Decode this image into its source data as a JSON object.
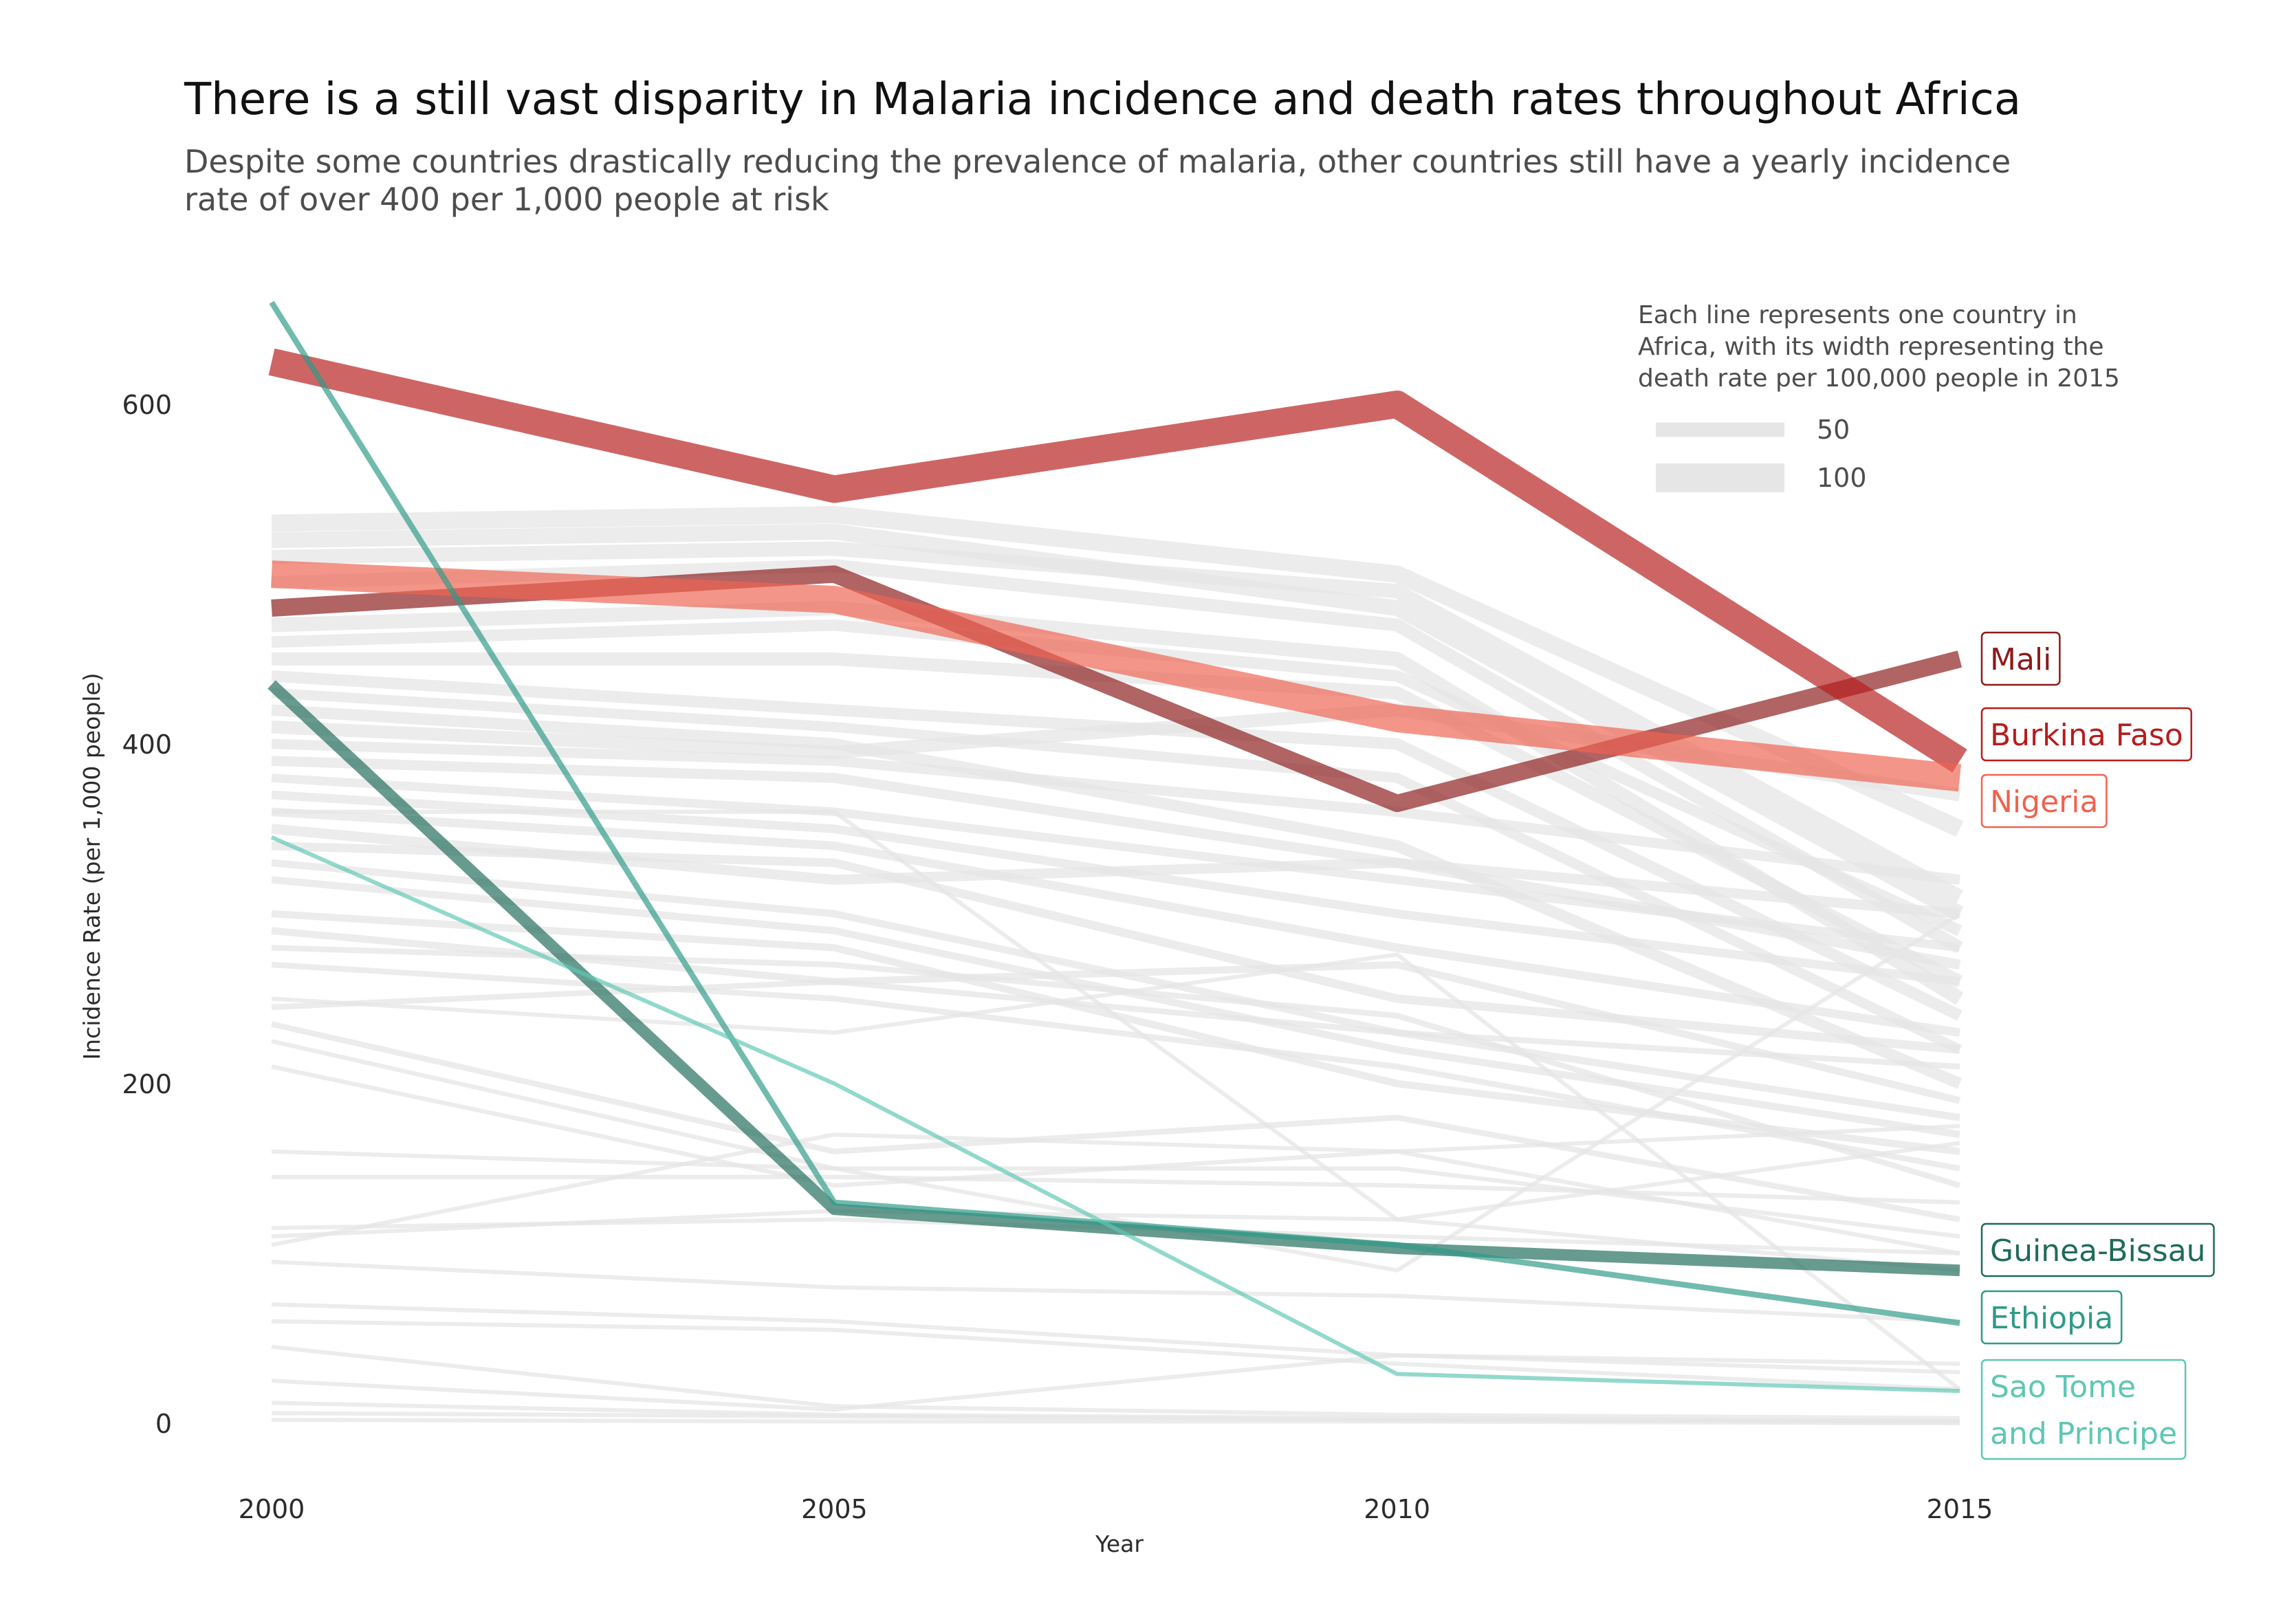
{
  "title": "There is a still vast disparity in Malaria incidence and death rates throughout Africa",
  "subtitle": "Despite some countries drastically reducing the prevalence of malaria, other countries still have a yearly incidence rate of over 400 per 1,000 people at risk",
  "colors": {
    "background_line": "#e6e6e6",
    "Mali": "#8b1a1a",
    "Burkina Faso": "#b71c1c",
    "Nigeria": "#ef6351",
    "Guinea-Bissau": "#1f6b5a",
    "Ethiopia": "#2e9a88",
    "Sao Tome and Principe": "#5ec7b4",
    "axis_text": "#2b2b2b"
  },
  "chart_data": {
    "type": "line",
    "title": "There is a still vast disparity in Malaria incidence and death rates throughout Africa",
    "subtitle": "Despite some countries drastically reducing the prevalence of malaria, other countries still have a yearly incidence rate of over 400 per 1,000 people at risk",
    "xlabel": "Year",
    "ylabel": "Incidence Rate (per 1,000 people)",
    "x": [
      2000,
      2005,
      2010,
      2015
    ],
    "x_ticks": [
      "2000",
      "2005",
      "2010",
      "2015"
    ],
    "y_ticks": [
      "0",
      "200",
      "400",
      "600"
    ],
    "xlim": [
      2000,
      2016.5
    ],
    "ylim": [
      0,
      660
    ],
    "grid": false,
    "legend": {
      "title": "Each line represents one country in Africa, with its width representing the death rate per 100,000 people in 2015",
      "title_lines": [
        "Each line represents one country in",
        "Africa, with its width representing the",
        "death rate per 100,000 people in 2015"
      ],
      "entries": [
        {
          "label": "50",
          "width": 50
        },
        {
          "label": "100",
          "width": 100
        }
      ],
      "placement": "top-right"
    },
    "highlight_series": [
      {
        "name": "Mali",
        "values": [
          480,
          500,
          365,
          450
        ],
        "death_rate": 60,
        "label_lines": [
          "Mali"
        ]
      },
      {
        "name": "Burkina Faso",
        "values": [
          625,
          550,
          600,
          390
        ],
        "death_rate": 95,
        "label_lines": [
          "Burkina Faso"
        ]
      },
      {
        "name": "Nigeria",
        "values": [
          500,
          485,
          415,
          380
        ],
        "death_rate": 95,
        "label_lines": [
          "Nigeria"
        ]
      },
      {
        "name": "Guinea-Bissau",
        "values": [
          435,
          126,
          103,
          90
        ],
        "death_rate": 40,
        "label_lines": [
          "Guinea-Bissau"
        ]
      },
      {
        "name": "Ethiopia",
        "values": [
          660,
          130,
          105,
          59
        ],
        "death_rate": 20,
        "label_lines": [
          "Ethiopia"
        ]
      },
      {
        "name": "Sao Tome and Principe",
        "values": [
          345,
          200,
          29,
          19
        ],
        "death_rate": 12,
        "label_lines": [
          "Sao Tome",
          "and Principe"
        ]
      }
    ],
    "background_series": [
      {
        "values": [
          530,
          535,
          500,
          350
        ],
        "death_rate": 60
      },
      {
        "values": [
          520,
          525,
          480,
          300
        ],
        "death_rate": 55
      },
      {
        "values": [
          510,
          515,
          490,
          310
        ],
        "death_rate": 50
      },
      {
        "values": [
          495,
          505,
          470,
          280
        ],
        "death_rate": 45
      },
      {
        "values": [
          470,
          480,
          450,
          250
        ],
        "death_rate": 50
      },
      {
        "values": [
          460,
          470,
          440,
          290
        ],
        "death_rate": 40
      },
      {
        "values": [
          450,
          450,
          430,
          260
        ],
        "death_rate": 45
      },
      {
        "values": [
          440,
          420,
          400,
          240
        ],
        "death_rate": 40
      },
      {
        "values": [
          430,
          410,
          380,
          220
        ],
        "death_rate": 35
      },
      {
        "values": [
          420,
          400,
          340,
          200
        ],
        "death_rate": 40
      },
      {
        "values": [
          410,
          395,
          420,
          370
        ],
        "death_rate": 45
      },
      {
        "values": [
          400,
          390,
          360,
          320
        ],
        "death_rate": 35
      },
      {
        "values": [
          390,
          380,
          330,
          300
        ],
        "death_rate": 35
      },
      {
        "values": [
          380,
          360,
          320,
          280
        ],
        "death_rate": 30
      },
      {
        "values": [
          370,
          350,
          300,
          260
        ],
        "death_rate": 30
      },
      {
        "values": [
          360,
          340,
          280,
          230
        ],
        "death_rate": 30
      },
      {
        "values": [
          350,
          320,
          330,
          270
        ],
        "death_rate": 35
      },
      {
        "values": [
          340,
          330,
          250,
          220
        ],
        "death_rate": 30
      },
      {
        "values": [
          330,
          300,
          230,
          180
        ],
        "death_rate": 25
      },
      {
        "values": [
          320,
          290,
          220,
          170
        ],
        "death_rate": 25
      },
      {
        "values": [
          300,
          280,
          200,
          160
        ],
        "death_rate": 25
      },
      {
        "values": [
          290,
          260,
          270,
          190
        ],
        "death_rate": 25
      },
      {
        "values": [
          280,
          270,
          240,
          140
        ],
        "death_rate": 20
      },
      {
        "values": [
          270,
          250,
          210,
          150
        ],
        "death_rate": 20
      },
      {
        "values": [
          245,
          260,
          230,
          210
        ],
        "death_rate": 20
      },
      {
        "values": [
          235,
          160,
          180,
          120
        ],
        "death_rate": 20
      },
      {
        "values": [
          225,
          150,
          150,
          110
        ],
        "death_rate": 15
      },
      {
        "values": [
          210,
          140,
          160,
          100
        ],
        "death_rate": 15
      },
      {
        "values": [
          145,
          145,
          140,
          130
        ],
        "death_rate": 15
      },
      {
        "values": [
          115,
          120,
          110,
          100
        ],
        "death_rate": 12
      },
      {
        "values": [
          110,
          125,
          120,
          165
        ],
        "death_rate": 12
      },
      {
        "values": [
          105,
          170,
          160,
          175
        ],
        "death_rate": 10
      },
      {
        "values": [
          95,
          80,
          75,
          60
        ],
        "death_rate": 10
      },
      {
        "values": [
          70,
          60,
          40,
          30
        ],
        "death_rate": 8
      },
      {
        "values": [
          45,
          10,
          5,
          3
        ],
        "death_rate": 6
      },
      {
        "values": [
          25,
          8,
          40,
          35
        ],
        "death_rate": 6
      },
      {
        "values": [
          12,
          5,
          3,
          1
        ],
        "death_rate": 4
      },
      {
        "values": [
          6,
          4,
          2,
          1
        ],
        "death_rate": 3
      },
      {
        "values": [
          2,
          1,
          1,
          0
        ],
        "death_rate": 2
      },
      {
        "values": [
          60,
          55,
          35,
          20
        ],
        "death_rate": 8
      },
      {
        "values": [
          250,
          230,
          276,
          20
        ],
        "death_rate": 6
      },
      {
        "values": [
          160,
          150,
          90,
          300
        ],
        "death_rate": 8
      },
      {
        "values": [
          360,
          360,
          120,
          90
        ],
        "death_rate": 10
      }
    ]
  }
}
